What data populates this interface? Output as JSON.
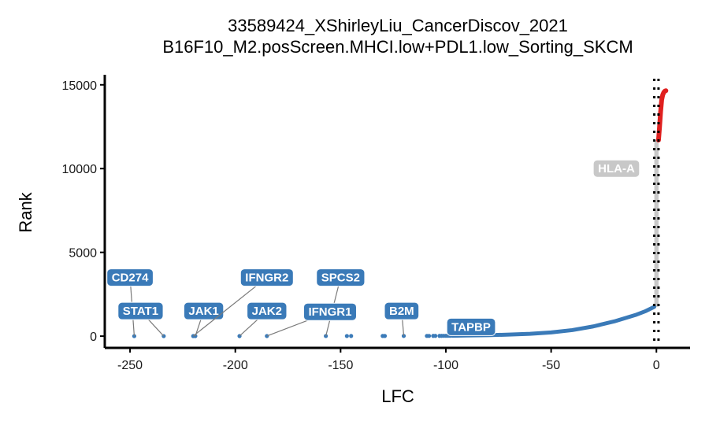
{
  "chart_data": {
    "type": "scatter",
    "title": "33589424_XShirleyLiu_CancerDiscov_2021",
    "subtitle": "B16F10_M2.posScreen.MHCI.low+PDL1.low_Sorting_SKCM",
    "xlabel": "LFC",
    "ylabel": "Rank",
    "xlim": [
      -262,
      16
    ],
    "ylim": [
      -700,
      15600
    ],
    "x_ticks": [
      -250,
      -200,
      -150,
      -100,
      -50,
      0
    ],
    "x_tick_labels": [
      "-250",
      "-200",
      "-150",
      "-100",
      "-50",
      "0"
    ],
    "y_ticks": [
      0,
      5000,
      10000,
      15000
    ],
    "y_tick_labels": [
      "0",
      "5000",
      "10000",
      "15000"
    ],
    "grid": false,
    "vlines": [
      -1,
      1
    ],
    "colors": {
      "negative": "#3a7ab8",
      "positive": "#e0201f",
      "neutral": "#c8c8c8",
      "label_negative": "#3a7ab8",
      "label_neutral": "#c8c8c8"
    },
    "negative_points": [
      [
        -248,
        1
      ],
      [
        -234,
        2
      ],
      [
        -220,
        3
      ],
      [
        -219,
        4
      ],
      [
        -198,
        5
      ],
      [
        -185,
        6
      ],
      [
        -157,
        7
      ],
      [
        -147,
        8
      ],
      [
        -145,
        9
      ],
      [
        -130,
        10
      ],
      [
        -129,
        11
      ],
      [
        -120,
        12
      ],
      [
        -109,
        13
      ],
      [
        -108,
        14
      ],
      [
        -106,
        15
      ],
      [
        -105,
        16
      ],
      [
        -103,
        17
      ],
      [
        -102,
        18
      ],
      [
        -101,
        19
      ],
      [
        -100,
        20
      ],
      [
        -99,
        21
      ],
      [
        -98,
        22
      ]
    ],
    "negative_curve": [
      [
        -97,
        25
      ],
      [
        -90,
        40
      ],
      [
        -80,
        60
      ],
      [
        -70,
        90
      ],
      [
        -60,
        140
      ],
      [
        -50,
        220
      ],
      [
        -40,
        360
      ],
      [
        -30,
        580
      ],
      [
        -20,
        880
      ],
      [
        -10,
        1260
      ],
      [
        -5,
        1500
      ],
      [
        -1,
        1750
      ]
    ],
    "neutral_band": {
      "x": [
        -1,
        1
      ],
      "y": [
        1750,
        11700
      ]
    },
    "positive_curve": [
      [
        1,
        11700
      ],
      [
        1.5,
        12500
      ],
      [
        2,
        13400
      ],
      [
        2.5,
        14100
      ],
      [
        3,
        14400
      ],
      [
        3.5,
        14550
      ],
      [
        4,
        14620
      ],
      [
        4.5,
        14650
      ]
    ],
    "labels": [
      {
        "text": "CD274",
        "category": "negative",
        "point": [
          -248,
          1
        ],
        "anchor": [
          -250,
          3500
        ]
      },
      {
        "text": "STAT1",
        "category": "negative",
        "point": [
          -234,
          2
        ],
        "anchor": [
          -245,
          1500
        ]
      },
      {
        "text": "JAK1",
        "category": "negative",
        "point": [
          -219,
          4
        ],
        "anchor": [
          -215,
          1500
        ]
      },
      {
        "text": "IFNGR2",
        "category": "negative",
        "point": [
          -220,
          3
        ],
        "anchor": [
          -185,
          3500
        ]
      },
      {
        "text": "JAK2",
        "category": "negative",
        "point": [
          -198,
          5
        ],
        "anchor": [
          -185,
          1500
        ]
      },
      {
        "text": "SPCS2",
        "category": "negative",
        "point": [
          -157,
          7
        ],
        "anchor": [
          -150,
          3500
        ]
      },
      {
        "text": "IFNGR1",
        "category": "negative",
        "point": [
          -185,
          6
        ],
        "anchor": [
          -155,
          1450
        ]
      },
      {
        "text": "B2M",
        "category": "negative",
        "point": [
          -120,
          12
        ],
        "anchor": [
          -121,
          1500
        ]
      },
      {
        "text": "TAPBP",
        "category": "negative",
        "point": [
          -100,
          20
        ],
        "anchor": [
          -88,
          550
        ]
      },
      {
        "text": "HLA-A",
        "category": "neutral",
        "point": [
          0,
          10000
        ],
        "anchor": [
          -19,
          10000
        ]
      }
    ]
  }
}
